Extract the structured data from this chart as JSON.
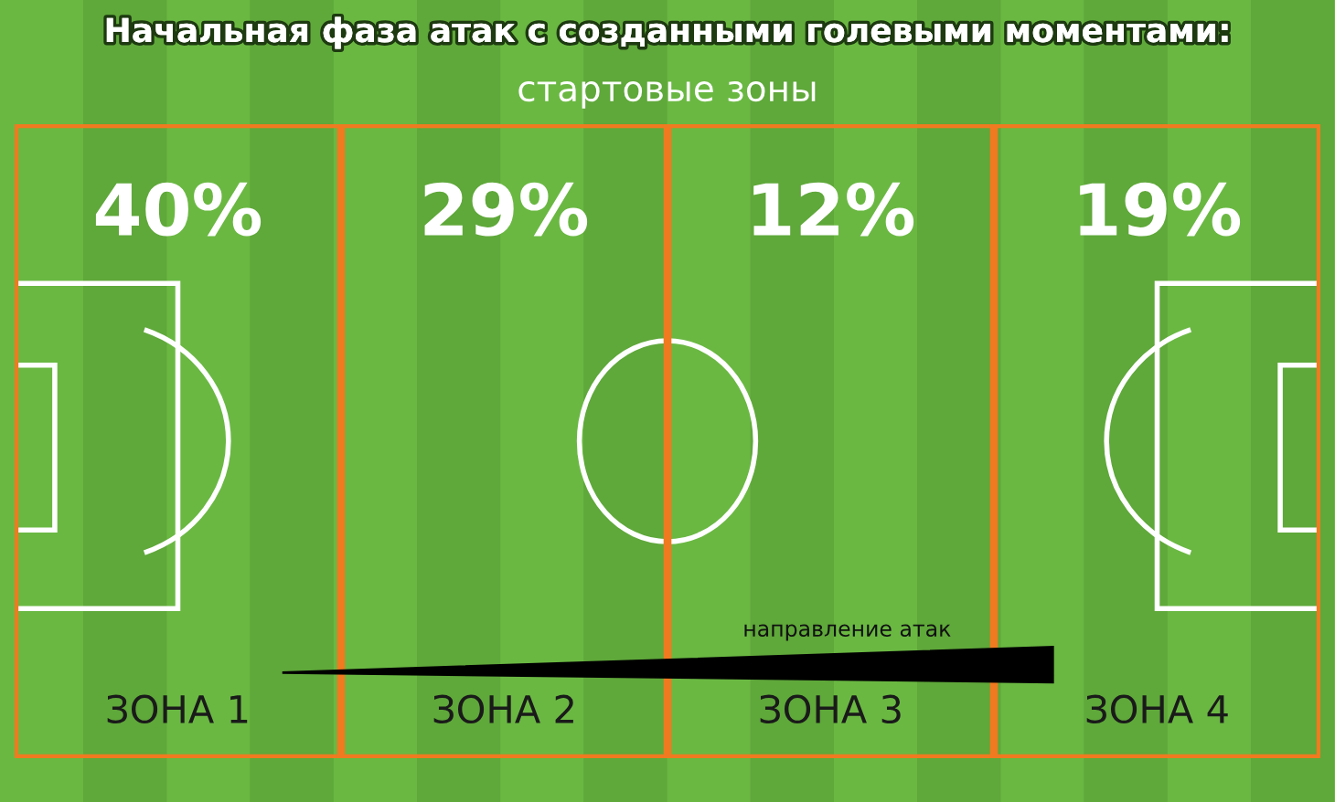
{
  "chart_data": {
    "type": "other",
    "title": "Начальная фаза атак с созданными голевыми моментами:",
    "subtitle": "стартовые зоны",
    "categories": [
      "ЗОНА 1",
      "ЗОНА 2",
      "ЗОНА 3",
      "ЗОНА 4"
    ],
    "values": [
      40,
      29,
      12,
      19
    ],
    "value_labels": [
      "40%",
      "29%",
      "12%",
      "19%"
    ],
    "annotations": [
      "направление атак"
    ]
  }
}
